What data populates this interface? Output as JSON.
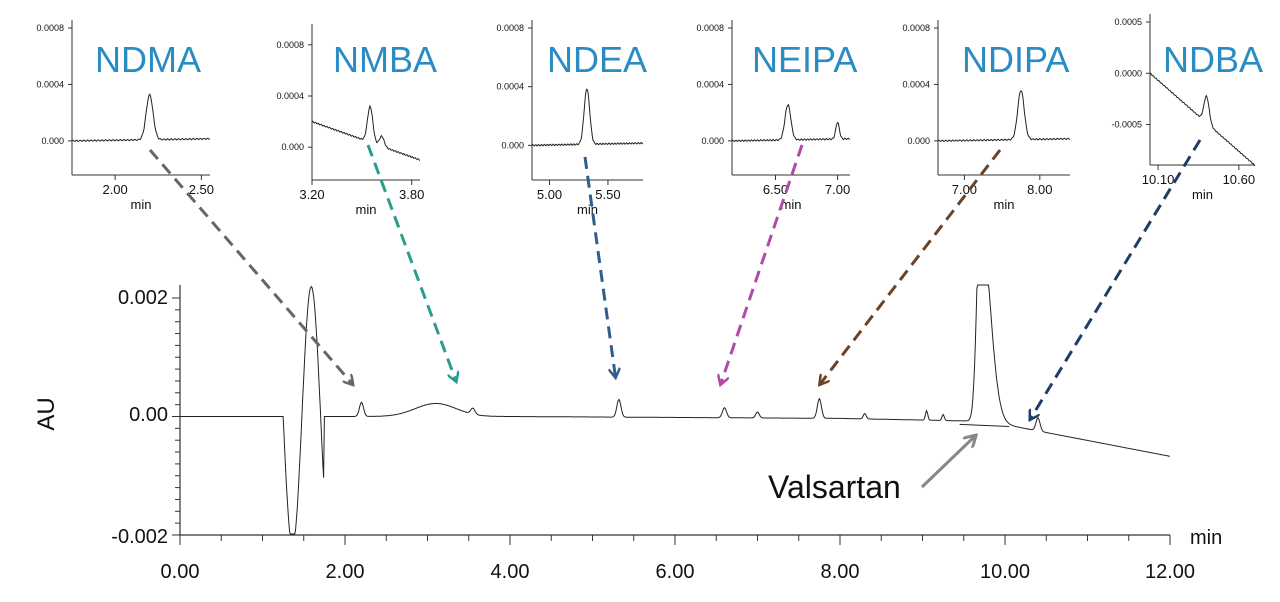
{
  "colors": {
    "trace": "#222222",
    "inset_title": "#2b8cc4",
    "arrows": {
      "NDMA": "#666666",
      "NMBA": "#2a9d8f",
      "NDEA": "#2f5d8c",
      "NEIPA": "#b14aa6",
      "NDIPA": "#6b4226",
      "NDBA": "#1f3d66",
      "Valsartan": "#888888"
    }
  },
  "chart_data": [
    {
      "type": "line",
      "id": "main",
      "xlabel": "min",
      "ylabel": "AU",
      "xlim": [
        0,
        12
      ],
      "ylim": [
        -0.002,
        0.002
      ],
      "xticks": [
        "0.00",
        "2.00",
        "4.00",
        "6.00",
        "8.00",
        "10.00",
        "12.00"
      ],
      "yticks": [
        "-0.002",
        "0.00",
        "0.002"
      ],
      "annotations": [
        {
          "text": "Valsartan",
          "x": 9.7,
          "y": -0.0003
        }
      ],
      "peaks": [
        {
          "name": "NDMA",
          "rt": 2.2,
          "height": 0.00024
        },
        {
          "name": "NMBA",
          "rt": 3.55,
          "height": 0.0001
        },
        {
          "name": "NDEA",
          "rt": 5.32,
          "height": 0.0003
        },
        {
          "name": "NEIPA",
          "rt": 6.6,
          "height": 0.00017
        },
        {
          "name": "NDIPA",
          "rt": 7.75,
          "height": 0.00033
        },
        {
          "name": "NDBA",
          "rt": 10.4,
          "height": 0.00022
        },
        {
          "name": "Valsartan",
          "rt": 9.7,
          "height": 0.0022
        }
      ]
    },
    {
      "type": "line",
      "id": "inset-ndma",
      "title": "NDMA",
      "xlabel": "min",
      "xlim": [
        1.75,
        2.55
      ],
      "ylim": [
        -0.0001,
        0.0008
      ],
      "xticks": [
        "2.00",
        "2.50"
      ],
      "yticks": [
        "0.000",
        "0.0004",
        "0.0008"
      ],
      "peak": {
        "rt": 2.2,
        "height": 0.00032
      }
    },
    {
      "type": "line",
      "id": "inset-nmba",
      "title": "NMBA",
      "xlabel": "min",
      "xlim": [
        3.2,
        3.85
      ],
      "ylim": [
        -0.0001,
        0.0009
      ],
      "xticks": [
        "3.20",
        "3.80"
      ],
      "yticks": [
        "0.000",
        "0.0004",
        "0.0008"
      ],
      "peak": {
        "rt": 3.55,
        "height": 0.00028
      }
    },
    {
      "type": "line",
      "id": "inset-ndea",
      "title": "NDEA",
      "xlabel": "min",
      "xlim": [
        4.85,
        5.8
      ],
      "ylim": [
        -0.0001,
        0.0008
      ],
      "xticks": [
        "5.00",
        "5.50"
      ],
      "yticks": [
        "0.000",
        "0.0004",
        "0.0008"
      ],
      "peak": {
        "rt": 5.32,
        "height": 0.00038
      }
    },
    {
      "type": "line",
      "id": "inset-neipa",
      "title": "NEIPA",
      "xlabel": "min",
      "xlim": [
        6.15,
        7.1
      ],
      "ylim": [
        -0.0001,
        0.0008
      ],
      "xticks": [
        "6.50",
        "7.00"
      ],
      "yticks": [
        "0.000",
        "0.0004",
        "0.0008"
      ],
      "peak": {
        "rt": 6.6,
        "height": 0.00025
      }
    },
    {
      "type": "line",
      "id": "inset-ndipa",
      "title": "NDIPA",
      "xlabel": "min",
      "xlim": [
        6.65,
        8.4
      ],
      "ylim": [
        -0.0001,
        0.0008
      ],
      "xticks": [
        "7.00",
        "8.00"
      ],
      "yticks": [
        "0.000",
        "0.0004",
        "0.0008"
      ],
      "peak": {
        "rt": 7.75,
        "height": 0.00035
      }
    },
    {
      "type": "line",
      "id": "inset-ndba",
      "title": "NDBA",
      "xlabel": "min",
      "xlim": [
        10.05,
        10.7
      ],
      "ylim": [
        -0.0007,
        0.0005
      ],
      "xticks": [
        "10.10",
        "10.60"
      ],
      "yticks": [
        "-0.0005",
        "0.0000",
        "0.0005"
      ],
      "peak": {
        "rt": 10.4,
        "height": 0.00026
      }
    }
  ]
}
